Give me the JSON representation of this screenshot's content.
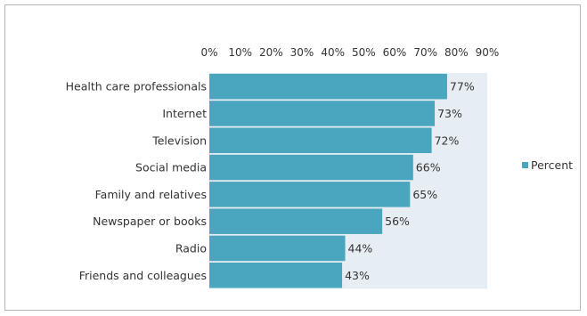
{
  "chart_data": {
    "type": "bar",
    "orientation": "horizontal",
    "categories": [
      "Health care professionals",
      "Internet",
      "Television",
      "Social media",
      "Family and relatives",
      "Newspaper or books",
      "Radio",
      "Friends and colleagues"
    ],
    "series": [
      {
        "name": "Percent",
        "values": [
          77,
          73,
          72,
          66,
          65,
          56,
          44,
          43
        ],
        "color": "#4aa5be"
      }
    ],
    "data_labels": [
      "77%",
      "73%",
      "72%",
      "66%",
      "65%",
      "56%",
      "44%",
      "43%"
    ],
    "x_ticks": [
      "0%",
      "10%",
      "20%",
      "30%",
      "40%",
      "50%",
      "60%",
      "70%",
      "80%",
      "90%"
    ],
    "xlim": [
      0,
      90
    ],
    "x_axis_position": "top",
    "plot_background": "#e6eef4",
    "legend": {
      "position": "right",
      "entries": [
        "Percent"
      ]
    },
    "grid": false
  }
}
